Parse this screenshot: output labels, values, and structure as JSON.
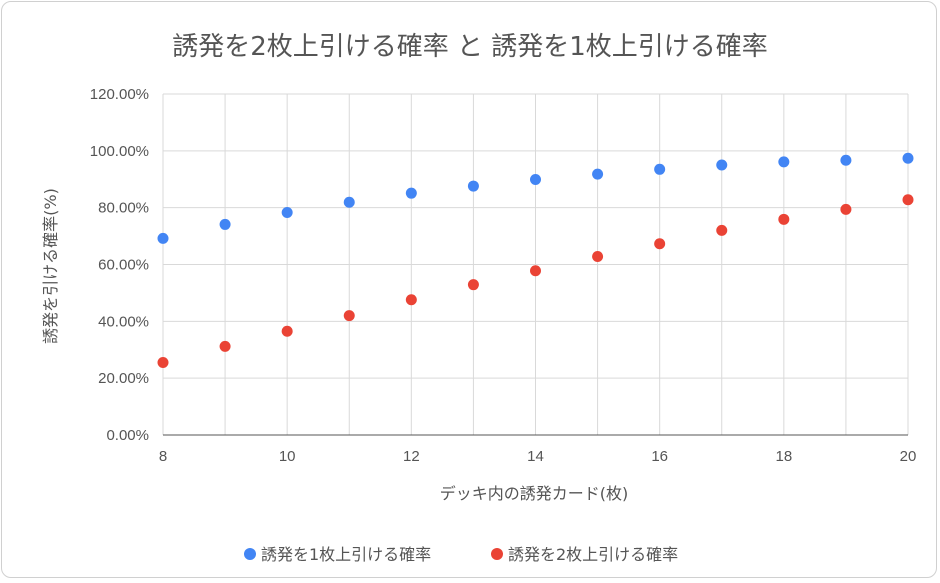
{
  "chart_data": {
    "type": "scatter",
    "title": "誘発を2枚上引ける確率 と 誘発を1枚上引ける確率",
    "xlabel": "デッキ内の誘発カード(枚)",
    "ylabel": "誘発を引ける確率(%)",
    "xlim": [
      8,
      20
    ],
    "ylim": [
      0,
      1.2
    ],
    "x_ticks": [
      8,
      10,
      12,
      14,
      16,
      18,
      20
    ],
    "x_tick_labels": [
      "8",
      "10",
      "12",
      "14",
      "16",
      "18",
      "20"
    ],
    "y_ticks": [
      0,
      0.2,
      0.4,
      0.6,
      0.8,
      1.0,
      1.2
    ],
    "y_tick_labels": [
      "0.00%",
      "20.00%",
      "40.00%",
      "60.00%",
      "80.00%",
      "100.00%",
      "120.00%"
    ],
    "x_minor_grid": [
      9,
      11,
      13,
      15,
      17,
      19
    ],
    "grid": true,
    "legend_position": "bottom",
    "series": [
      {
        "name": "誘発を1枚上引ける確率",
        "color": "#4285f4",
        "x": [
          8,
          9,
          10,
          11,
          12,
          13,
          14,
          15,
          16,
          17,
          18,
          19,
          20
        ],
        "y": [
          0.692,
          0.741,
          0.783,
          0.819,
          0.851,
          0.876,
          0.899,
          0.918,
          0.935,
          0.95,
          0.961,
          0.967,
          0.974
        ]
      },
      {
        "name": "誘発を2枚上引ける確率",
        "color": "#ea4335",
        "x": [
          8,
          9,
          10,
          11,
          12,
          13,
          14,
          15,
          16,
          17,
          18,
          19,
          20
        ],
        "y": [
          0.255,
          0.312,
          0.365,
          0.42,
          0.476,
          0.529,
          0.578,
          0.628,
          0.673,
          0.72,
          0.759,
          0.794,
          0.828
        ]
      }
    ]
  }
}
